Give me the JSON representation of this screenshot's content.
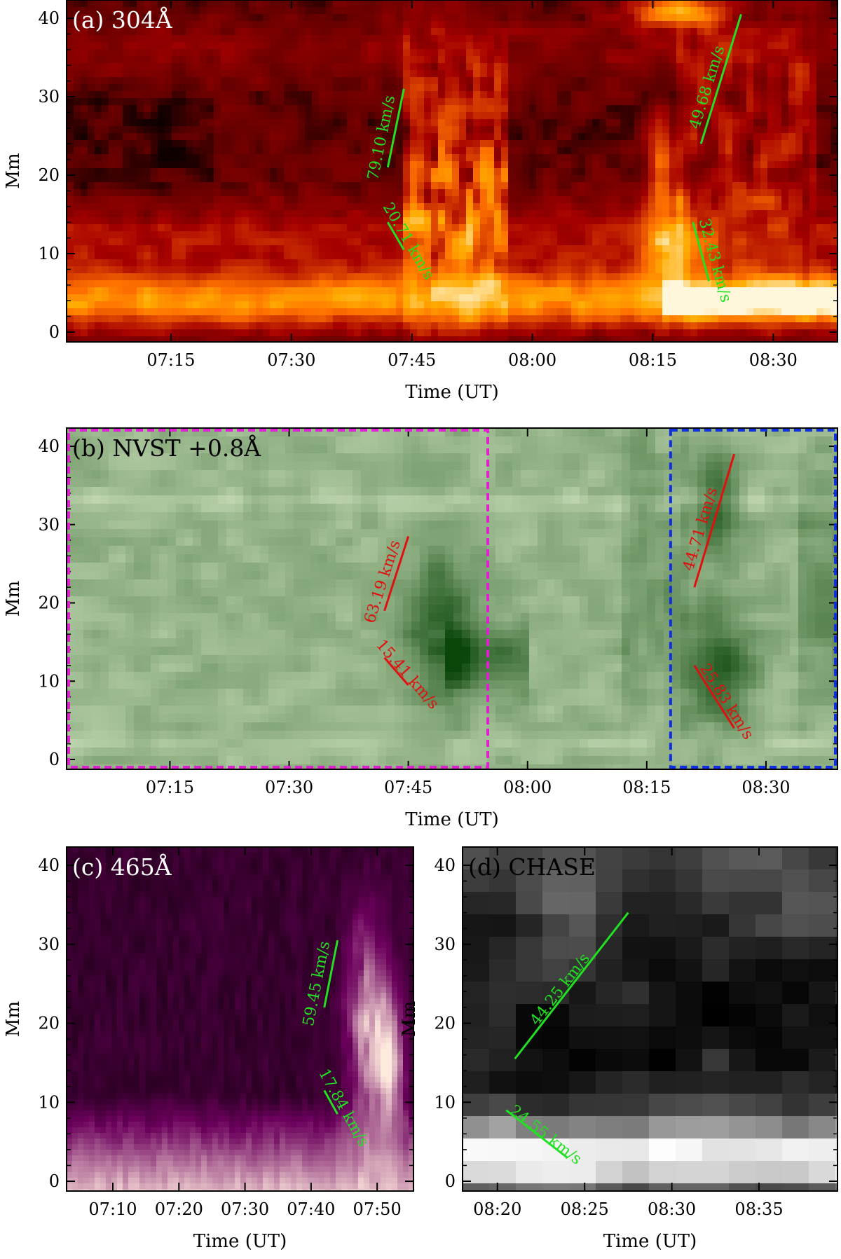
{
  "chart_data": [
    {
      "type": "heatmap",
      "title": "(a) 304Å",
      "xlabel": "Time (UT)",
      "ylabel": "Mm",
      "xticks": [
        "07:15",
        "07:30",
        "07:45",
        "08:00",
        "08:15",
        "08:30"
      ],
      "yticks": [
        "0",
        "10",
        "20",
        "30",
        "40"
      ],
      "ylim": [
        0,
        42
      ],
      "colormap": "hot",
      "label_color": "#ffffff",
      "annotations": [
        {
          "text": "79.10 km/s",
          "color": "#22e022",
          "t0": "07:42",
          "y0": 21,
          "t1": "07:44",
          "y1": 31
        },
        {
          "text": "20.71 km/s",
          "color": "#22e022",
          "t0": "07:42",
          "y0": 14,
          "t1": "07:44",
          "y1": 10.5
        },
        {
          "text": "49.68 km/s",
          "color": "#22e022",
          "t0": "08:21",
          "y0": 24,
          "t1": "08:26",
          "y1": 40.5
        },
        {
          "text": "32.43 km/s",
          "color": "#22e022",
          "t0": "08:20",
          "y0": 14,
          "t1": "08:22",
          "y1": 6.5
        }
      ]
    },
    {
      "type": "heatmap",
      "title": "(b) NVST +0.8Å",
      "xlabel": "Time (UT)",
      "ylabel": "Mm",
      "xticks": [
        "07:15",
        "07:30",
        "07:45",
        "08:00",
        "08:15",
        "08:30"
      ],
      "yticks": [
        "0",
        "10",
        "20",
        "30",
        "40"
      ],
      "ylim": [
        0,
        42
      ],
      "colormap": "green",
      "label_color": "#000000",
      "annotations": [
        {
          "text": "63.19 km/s",
          "color": "#e01010",
          "t0": "07:42",
          "y0": 19,
          "t1": "07:45",
          "y1": 28.5
        },
        {
          "text": "15.41 km/s",
          "color": "#e01010",
          "t0": "07:42",
          "y0": 13,
          "t1": "07:45",
          "y1": 9.5
        },
        {
          "text": "44.71 km/s",
          "color": "#e01010",
          "t0": "08:21",
          "y0": 22,
          "t1": "08:26",
          "y1": 39
        },
        {
          "text": "25.83 km/s",
          "color": "#e01010",
          "t0": "08:21",
          "y0": 12,
          "t1": "08:26",
          "y1": 4
        }
      ],
      "boxes": [
        {
          "color": "#e020d0",
          "t0": "07:00",
          "t1": "07:55"
        },
        {
          "color": "#1030e0",
          "t0": "08:18",
          "t1": "08:39"
        }
      ]
    },
    {
      "type": "heatmap",
      "title": "(c) 465Å",
      "xlabel": "Time (UT)",
      "ylabel": "Mm",
      "xticks": [
        "07:10",
        "07:20",
        "07:30",
        "07:40",
        "07:50"
      ],
      "yticks": [
        "0",
        "10",
        "20",
        "30",
        "40"
      ],
      "ylim": [
        0,
        42
      ],
      "colormap": "magenta",
      "label_color": "#ffffff",
      "annotations": [
        {
          "text": "59.45 km/s",
          "color": "#22e022",
          "t0": "07:42",
          "y0": 22,
          "t1": "07:44",
          "y1": 30.5
        },
        {
          "text": "17.84 km/s",
          "color": "#22e022",
          "t0": "07:42",
          "y0": 11.5,
          "t1": "07:44",
          "y1": 8.5
        }
      ]
    },
    {
      "type": "heatmap",
      "title": "(d) CHASE",
      "xlabel": "Time (UT)",
      "ylabel": "Mm",
      "xticks": [
        "08:20",
        "08:25",
        "08:30",
        "08:35"
      ],
      "yticks": [
        "0",
        "10",
        "20",
        "30",
        "40"
      ],
      "ylim": [
        0,
        42
      ],
      "colormap": "gray",
      "label_color": "#000000",
      "annotations": [
        {
          "text": "44.25 km/s",
          "color": "#22e022",
          "t0": "08:21",
          "y0": 15.5,
          "t1": "08:27.5",
          "y1": 34
        },
        {
          "text": "24.55 km/s",
          "color": "#22e022",
          "t0": "08:20.5",
          "y0": 9,
          "t1": "08:24",
          "y1": 3
        }
      ]
    }
  ]
}
